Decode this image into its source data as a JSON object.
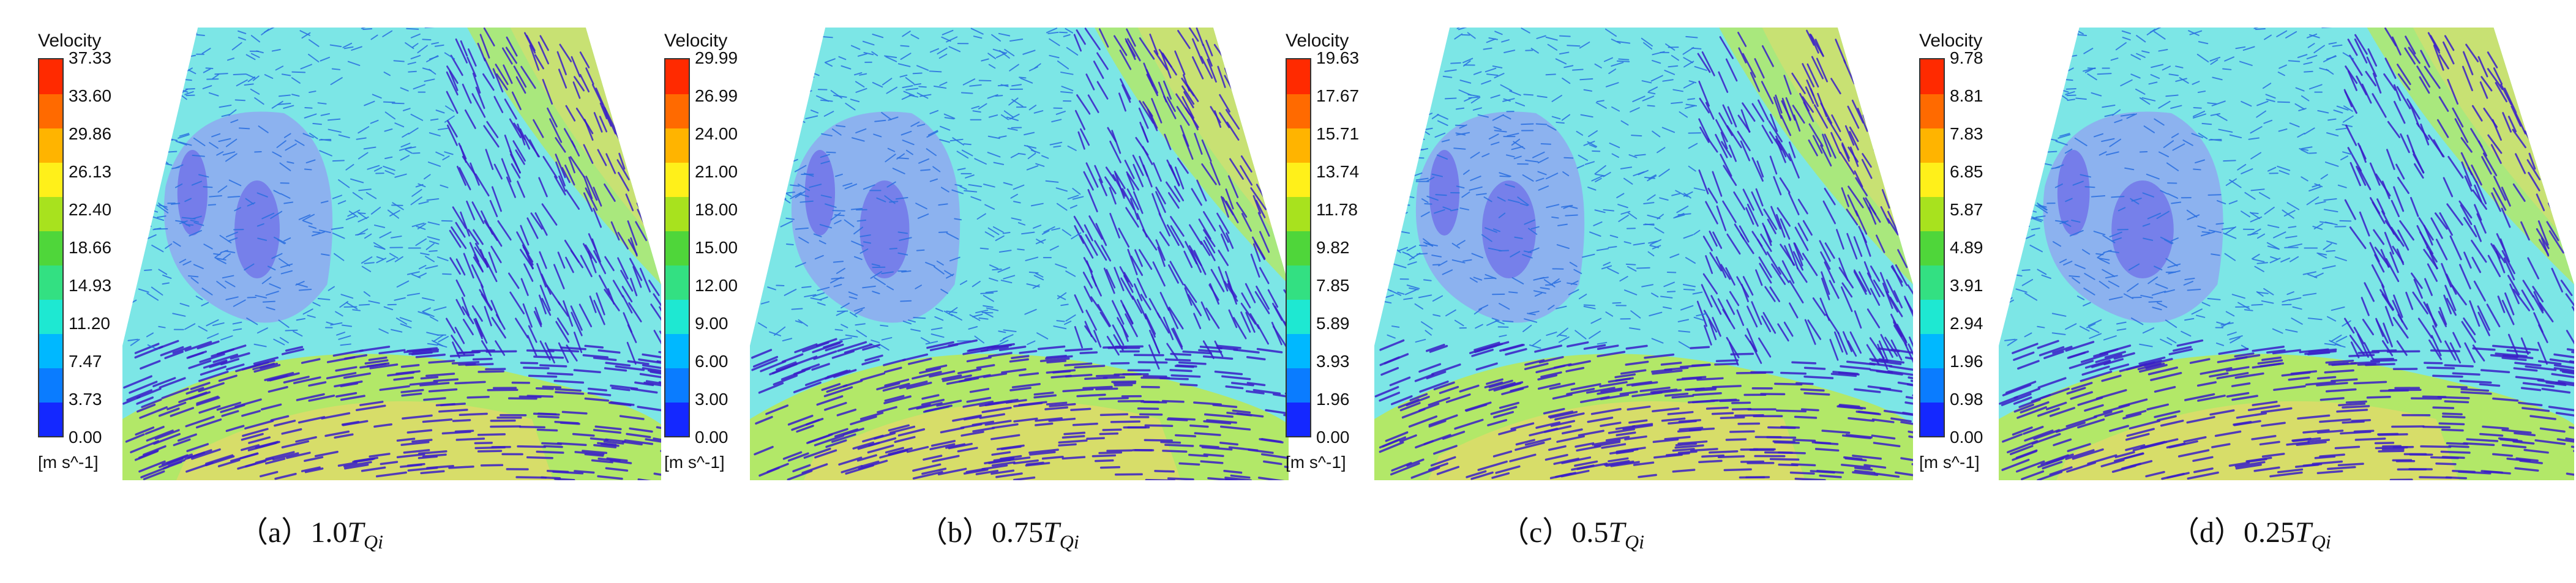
{
  "legend_title": "Velocity",
  "legend_unit": "[m s^-1]",
  "legend_colors": [
    "#1428ff",
    "#0a7cff",
    "#00b8ff",
    "#1ee8d2",
    "#33e082",
    "#4fd63a",
    "#a8e21e",
    "#fff01a",
    "#ffb400",
    "#ff6a00",
    "#ff2a00"
  ],
  "field_colors": {
    "base": "#7ce6e6",
    "low": "#8fa8f0",
    "core": "#6f6fe8",
    "high": "#b8e85a",
    "peak": "#e7d96a",
    "vector_dark": "#3a1fc8",
    "vector_mid": "#2a6fe0"
  },
  "panels": [
    {
      "label_prefix": "（a）",
      "label_value": "1.0",
      "label_symbol": "T",
      "label_sub": "Qi",
      "ticks": [
        "37.33",
        "33.60",
        "29.86",
        "26.13",
        "22.40",
        "18.66",
        "14.93",
        "11.20",
        "7.47",
        "3.73",
        "0.00"
      ]
    },
    {
      "label_prefix": "（b）",
      "label_value": "0.75",
      "label_symbol": "T",
      "label_sub": "Qi",
      "ticks": [
        "29.99",
        "26.99",
        "24.00",
        "21.00",
        "18.00",
        "15.00",
        "12.00",
        "9.00",
        "6.00",
        "3.00",
        "0.00"
      ]
    },
    {
      "label_prefix": "（c）",
      "label_value": "0.5",
      "label_symbol": "T",
      "label_sub": "Qi",
      "ticks": [
        "19.63",
        "17.67",
        "15.71",
        "13.74",
        "11.78",
        "9.82",
        "7.85",
        "5.89",
        "3.93",
        "1.96",
        "0.00"
      ]
    },
    {
      "label_prefix": "（d）",
      "label_value": "0.25",
      "label_symbol": "T",
      "label_sub": "Qi",
      "ticks": [
        "9.78",
        "8.81",
        "7.83",
        "6.85",
        "5.87",
        "4.89",
        "3.91",
        "2.94",
        "1.96",
        "0.98",
        "0.00"
      ]
    }
  ]
}
